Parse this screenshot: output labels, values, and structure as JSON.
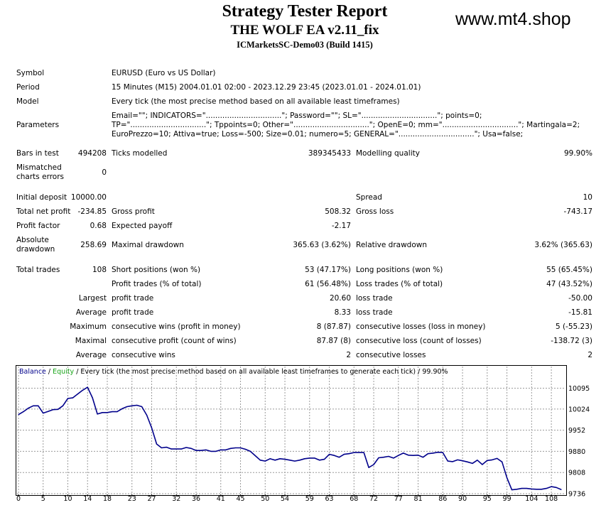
{
  "header": {
    "title": "Strategy Tester Report",
    "ea_name": "THE WOLF EA v2.11_fix",
    "server": "ICMarketsSC-Demo03 (Build 1415)",
    "watermark": "www.mt4.shop"
  },
  "info": {
    "symbol_label": "Symbol",
    "symbol_value": "EURUSD (Euro vs US Dollar)",
    "period_label": "Period",
    "period_value": "15 Minutes (M15) 2004.01.01 02:00 - 2023.12.29 23:45 (2023.01.01 - 2024.01.01)",
    "model_label": "Model",
    "model_value": "Every tick (the most precise method based on all available least timeframes)",
    "parameters_label": "Parameters",
    "parameters_value": "Email=\"\"; INDICATORS=\"................................\"; Password=\"\"; SL=\"................................\"; points=0; TP=\"................................\"; Tppoints=0; Other=\"................................\"; OpenE=0; mm=\"................................\"; Martingala=2; EuroPrezzo=10; Attiva=true; Loss=-500; Size=0.01; numero=5; GENERAL=\"................................\"; Usa=false;"
  },
  "stats": {
    "bars_label": "Bars in test",
    "bars_value": "494208",
    "ticks_label": "Ticks modelled",
    "ticks_value": "389345433",
    "quality_label": "Modelling quality",
    "quality_value": "99.90%",
    "mismatch_label_1": "Mismatched",
    "mismatch_label_2": "charts errors",
    "mismatch_value": "0",
    "deposit_label": "Initial deposit",
    "deposit_value": "10000.00",
    "spread_label": "Spread",
    "spread_value": "10",
    "net_label": "Total net profit",
    "net_value": "-234.85",
    "gross_profit_label": "Gross profit",
    "gross_profit_value": "508.32",
    "gross_loss_label": "Gross loss",
    "gross_loss_value": "-743.17",
    "pf_label": "Profit factor",
    "pf_value": "0.68",
    "payoff_label": "Expected payoff",
    "payoff_value": "-2.17",
    "abs_dd_label_1": "Absolute",
    "abs_dd_label_2": "drawdown",
    "abs_dd_value": "258.69",
    "max_dd_label": "Maximal drawdown",
    "max_dd_value": "365.63 (3.62%)",
    "rel_dd_label": "Relative drawdown",
    "rel_dd_value": "3.62% (365.63)",
    "trades_label": "Total trades",
    "trades_value": "108",
    "short_label": "Short positions (won %)",
    "short_value": "53 (47.17%)",
    "long_label": "Long positions (won %)",
    "long_value": "55 (65.45%)",
    "pt_label": "Profit trades (% of total)",
    "pt_value": "61 (56.48%)",
    "lt_label": "Loss trades (% of total)",
    "lt_value": "47 (43.52%)",
    "largest_label": "Largest",
    "largest_pt_label": "profit trade",
    "largest_pt_value": "20.60",
    "largest_lt_label": "loss trade",
    "largest_lt_value": "-50.00",
    "average_label": "Average",
    "avg_pt_label": "profit trade",
    "avg_pt_value": "8.33",
    "avg_lt_label": "loss trade",
    "avg_lt_value": "-15.81",
    "maximum_label": "Maximum",
    "max_cw_label": "consecutive wins (profit in money)",
    "max_cw_value": "8 (87.87)",
    "max_cl_label": "consecutive losses (loss in money)",
    "max_cl_value": "5 (-55.23)",
    "maximal_label": "Maximal",
    "mx_cp_label": "consecutive profit (count of wins)",
    "mx_cp_value": "87.87 (8)",
    "mx_cl_label": "consecutive loss (count of losses)",
    "mx_cl_value": "-138.72 (3)",
    "average2_label": "Average",
    "avg_cw_label": "consecutive wins",
    "avg_cw_value": "2",
    "avg_cl_label": "consecutive losses",
    "avg_cl_value": "2"
  },
  "chart_data": {
    "type": "line",
    "legend_balance": "Balance",
    "legend_equity": "Equity",
    "legend_rest": " / Every tick (the most precise method based on all available least timeframes to generate each tick) / 99.90%",
    "legend_sep": " / ",
    "colors": {
      "balance": "#00008b",
      "equity": "#1aa51a",
      "grid": "#9a9a9a"
    },
    "ylim": [
      9736,
      10130
    ],
    "yticks": [
      10095,
      10024,
      9952,
      9880,
      9808,
      9736
    ],
    "xlim": [
      0,
      110
    ],
    "xticks": [
      0,
      5,
      10,
      14,
      18,
      23,
      27,
      32,
      36,
      41,
      45,
      50,
      54,
      59,
      63,
      68,
      72,
      77,
      81,
      86,
      90,
      95,
      99,
      104,
      108
    ],
    "grid": true,
    "series": [
      {
        "name": "Balance",
        "x": [
          0,
          1,
          2,
          3,
          4,
          5,
          6,
          7,
          8,
          9,
          10,
          11,
          12,
          13,
          14,
          15,
          16,
          17,
          18,
          19,
          20,
          21,
          22,
          23,
          24,
          25,
          26,
          27,
          28,
          29,
          30,
          31,
          32,
          33,
          34,
          35,
          36,
          37,
          38,
          39,
          40,
          41,
          42,
          43,
          44,
          45,
          46,
          47,
          48,
          49,
          50,
          51,
          52,
          53,
          54,
          55,
          56,
          57,
          58,
          59,
          60,
          61,
          62,
          63,
          64,
          65,
          66,
          67,
          68,
          69,
          70,
          71,
          72,
          73,
          74,
          75,
          76,
          77,
          78,
          79,
          80,
          81,
          82,
          83,
          84,
          85,
          86,
          87,
          88,
          89,
          90,
          91,
          92,
          93,
          94,
          95,
          96,
          97,
          98,
          99,
          100,
          101,
          102,
          103,
          104,
          105,
          106,
          107,
          108,
          109,
          110
        ],
        "values": [
          10005,
          10015,
          10027,
          10035,
          10035,
          10010,
          10016,
          10022,
          10023,
          10035,
          10060,
          10062,
          10075,
          10088,
          10098,
          10062,
          10007,
          10012,
          10012,
          10015,
          10015,
          10025,
          10032,
          10035,
          10037,
          10032,
          10003,
          9960,
          9905,
          9892,
          9894,
          9888,
          9888,
          9888,
          9893,
          9890,
          9883,
          9883,
          9885,
          9880,
          9880,
          9885,
          9885,
          9890,
          9892,
          9892,
          9887,
          9880,
          9865,
          9850,
          9847,
          9855,
          9850,
          9855,
          9853,
          9850,
          9847,
          9850,
          9855,
          9857,
          9857,
          9850,
          9853,
          9870,
          9866,
          9860,
          9870,
          9872,
          9876,
          9876,
          9876,
          9825,
          9835,
          9858,
          9860,
          9863,
          9857,
          9866,
          9874,
          9867,
          9866,
          9867,
          9860,
          9872,
          9874,
          9877,
          9876,
          9847,
          9845,
          9851,
          9848,
          9844,
          9839,
          9850,
          9835,
          9849,
          9851,
          9856,
          9844,
          9790,
          9749,
          9751,
          9754,
          9754,
          9752,
          9751,
          9751,
          9754,
          9760,
          9757,
          9750
        ]
      }
    ]
  }
}
